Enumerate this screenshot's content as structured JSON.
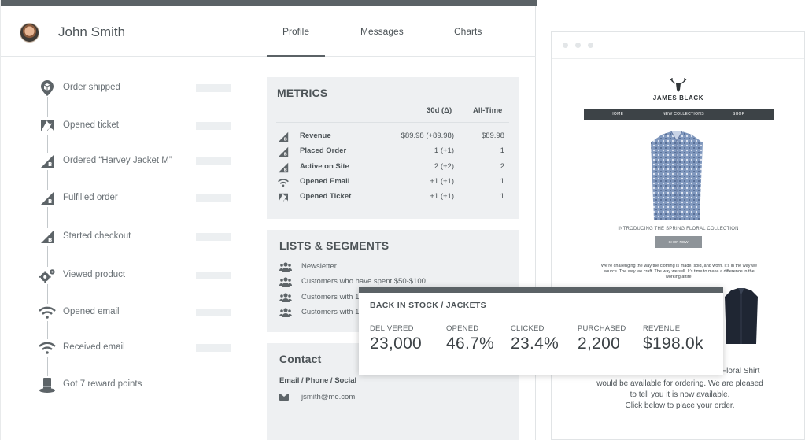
{
  "profile": {
    "user_name": "John Smith",
    "tabs": [
      {
        "label": "Profile",
        "active": true
      },
      {
        "label": "Messages",
        "active": false
      },
      {
        "label": "Charts",
        "active": false
      }
    ]
  },
  "timeline": [
    {
      "icon": "shipping-pin-icon",
      "label": "Order shipped"
    },
    {
      "icon": "zendesk-icon",
      "label": "Opened ticket"
    },
    {
      "icon": "bigcommerce-icon",
      "label": "Ordered “Harvey Jacket M”"
    },
    {
      "icon": "bigcommerce-icon",
      "label": "Fulfilled order"
    },
    {
      "icon": "bigcommerce-icon",
      "label": "Started checkout"
    },
    {
      "icon": "gears-icon",
      "label": "Viewed product"
    },
    {
      "icon": "wifi-icon",
      "label": "Opened email"
    },
    {
      "icon": "wifi-icon",
      "label": "Received email"
    },
    {
      "icon": "top-hat-icon",
      "label": "Got 7 reward points"
    }
  ],
  "metrics": {
    "title": "METRICS",
    "col_30d": "30d (Δ)",
    "col_all": "All-Time",
    "rows": [
      {
        "icon": "bigcommerce-icon",
        "label": "Revenue",
        "d30": "$89.98 (+89.98)",
        "all": "$89.98"
      },
      {
        "icon": "bigcommerce-icon",
        "label": "Placed Order",
        "d30": "1 (+1)",
        "all": "1"
      },
      {
        "icon": "bigcommerce-icon",
        "label": "Active on Site",
        "d30": "2 (+2)",
        "all": "2"
      },
      {
        "icon": "wifi-icon",
        "label": "Opened Email",
        "d30": "+1 (+1)",
        "all": "1"
      },
      {
        "icon": "zendesk-icon",
        "label": "Opened Ticket",
        "d30": "+1 (+1)",
        "all": "1"
      }
    ]
  },
  "lists": {
    "title": "LISTS & SEGMENTS",
    "items": [
      "Newsletter",
      "Customers who have spent $50-$100",
      "Customers with 1",
      "Customers with 1"
    ]
  },
  "contact": {
    "title": "Contact",
    "subtitle": "Email / Phone / Social",
    "email": "jsmith@me.com"
  },
  "email_preview": {
    "brand": "JAMES BLACK",
    "nav": [
      "HOME",
      "NEW COLLECTIONS",
      "SHOP"
    ],
    "caption": "INTRODUCING THE SPRING FLORAL COLLECTION",
    "button": "SHOP NOW",
    "body_text": "We’re challenging the way the clothing is made, sold, and worn. It’s in the way we source. The way we craft. The way we sell. It’s time to make a difference in the working attire.",
    "floral_fragment": "Floral Shirt",
    "bottom_text_1": "would be available for ordering. We are pleased",
    "bottom_text_2": "to tell you it is now available.",
    "bottom_text_3": "Click below to place your order."
  },
  "campaign": {
    "title": "BACK IN STOCK / JACKETS",
    "stats": [
      {
        "label": "DELIVERED",
        "value": "23,000"
      },
      {
        "label": "OPENED",
        "value": "46.7%"
      },
      {
        "label": "CLICKED",
        "value": "23.4%"
      },
      {
        "label": "PURCHASED",
        "value": "2,200"
      },
      {
        "label": "REVENUE",
        "value": "$198.0k"
      }
    ]
  }
}
